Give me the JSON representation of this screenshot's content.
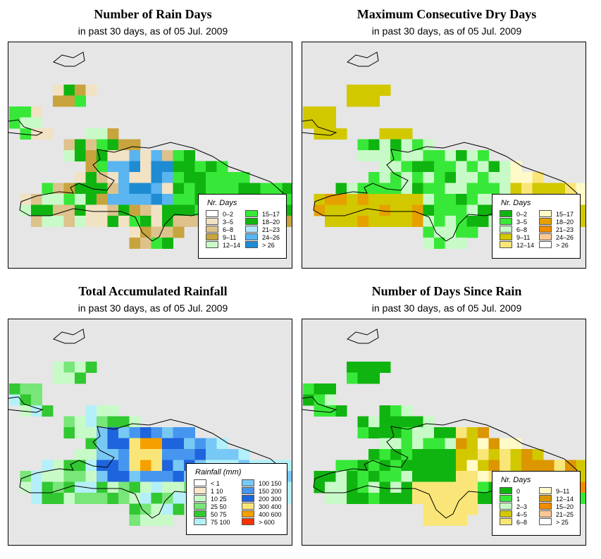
{
  "panels": [
    {
      "id": "rain_days",
      "title": "Number of Rain Days",
      "subtitle": "in past 30 days, as of  05 Jul. 2009",
      "legend": {
        "title": "Nr. Days",
        "items": [
          {
            "label": "0–2",
            "color": "#ffffff"
          },
          {
            "label": "3–5",
            "color": "#f2e2c4"
          },
          {
            "label": "6–8",
            "color": "#ddc28c"
          },
          {
            "label": "9–11",
            "color": "#c8a43e"
          },
          {
            "label": "12–14",
            "color": "#c8fac8"
          },
          {
            "label": "15–17",
            "color": "#38e838"
          },
          {
            "label": "18–20",
            "color": "#10b410"
          },
          {
            "label": "21–23",
            "color": "#b4e6fa"
          },
          {
            "label": "24–26",
            "color": "#5ab4f0"
          },
          {
            "label": "> 26",
            "color": "#1e8cd2"
          }
        ]
      }
    },
    {
      "id": "dry_days",
      "title": "Maximum Consecutive Dry Days",
      "subtitle": "in past 30 days, as of  05 Jul. 2009",
      "legend": {
        "title": "Nr. Days",
        "items": [
          {
            "label": "0–2",
            "color": "#10b410"
          },
          {
            "label": "3–5",
            "color": "#38e838"
          },
          {
            "label": "6–8",
            "color": "#c8fac8"
          },
          {
            "label": "9–11",
            "color": "#d2c800"
          },
          {
            "label": "12–14",
            "color": "#fae678"
          },
          {
            "label": "15–17",
            "color": "#fffac8"
          },
          {
            "label": "18–20",
            "color": "#e6a000"
          },
          {
            "label": "21–23",
            "color": "#f08c00"
          },
          {
            "label": "24–26",
            "color": "#fac896"
          },
          {
            "label": "> 26",
            "color": "#ffffff"
          }
        ]
      }
    },
    {
      "id": "rainfall",
      "title": "Total Accumulated Rainfall",
      "subtitle": "in past 30 days, as of  05 Jul. 2009",
      "legend": {
        "title": "Rainfall (mm)",
        "items": [
          {
            "label": "< 1",
            "color": "#ffffff"
          },
          {
            "label": "1   10",
            "color": "#fae6c8"
          },
          {
            "label": "10   25",
            "color": "#c8fac8"
          },
          {
            "label": "25   50",
            "color": "#78e678"
          },
          {
            "label": "50   75",
            "color": "#32c832"
          },
          {
            "label": "75   100",
            "color": "#b4f0fa"
          },
          {
            "label": "100   150",
            "color": "#78c8f5"
          },
          {
            "label": "150   200",
            "color": "#4696f0"
          },
          {
            "label": "200   300",
            "color": "#1e64dc"
          },
          {
            "label": "300   400",
            "color": "#fae678"
          },
          {
            "label": "400   600",
            "color": "#f5a000"
          },
          {
            "label": "> 600",
            "color": "#fa3200"
          }
        ]
      }
    },
    {
      "id": "since_rain",
      "title": "Number of Days Since Rain",
      "subtitle": "in past 30 days, as of  05 Jul. 2009",
      "legend": {
        "title": "Nr. Days",
        "items": [
          {
            "label": "0",
            "color": "#10b410"
          },
          {
            "label": "1",
            "color": "#38e838"
          },
          {
            "label": "2–3",
            "color": "#c8fac8"
          },
          {
            "label": "4–5",
            "color": "#d2c800"
          },
          {
            "label": "6–8",
            "color": "#fae678"
          },
          {
            "label": "9–11",
            "color": "#fffac8"
          },
          {
            "label": "12–14",
            "color": "#dc9600"
          },
          {
            "label": "15–20",
            "color": "#f08c00"
          },
          {
            "label": "21–25",
            "color": "#fac896"
          },
          {
            "label": "> 25",
            "color": "#ffffff"
          }
        ]
      }
    }
  ]
}
